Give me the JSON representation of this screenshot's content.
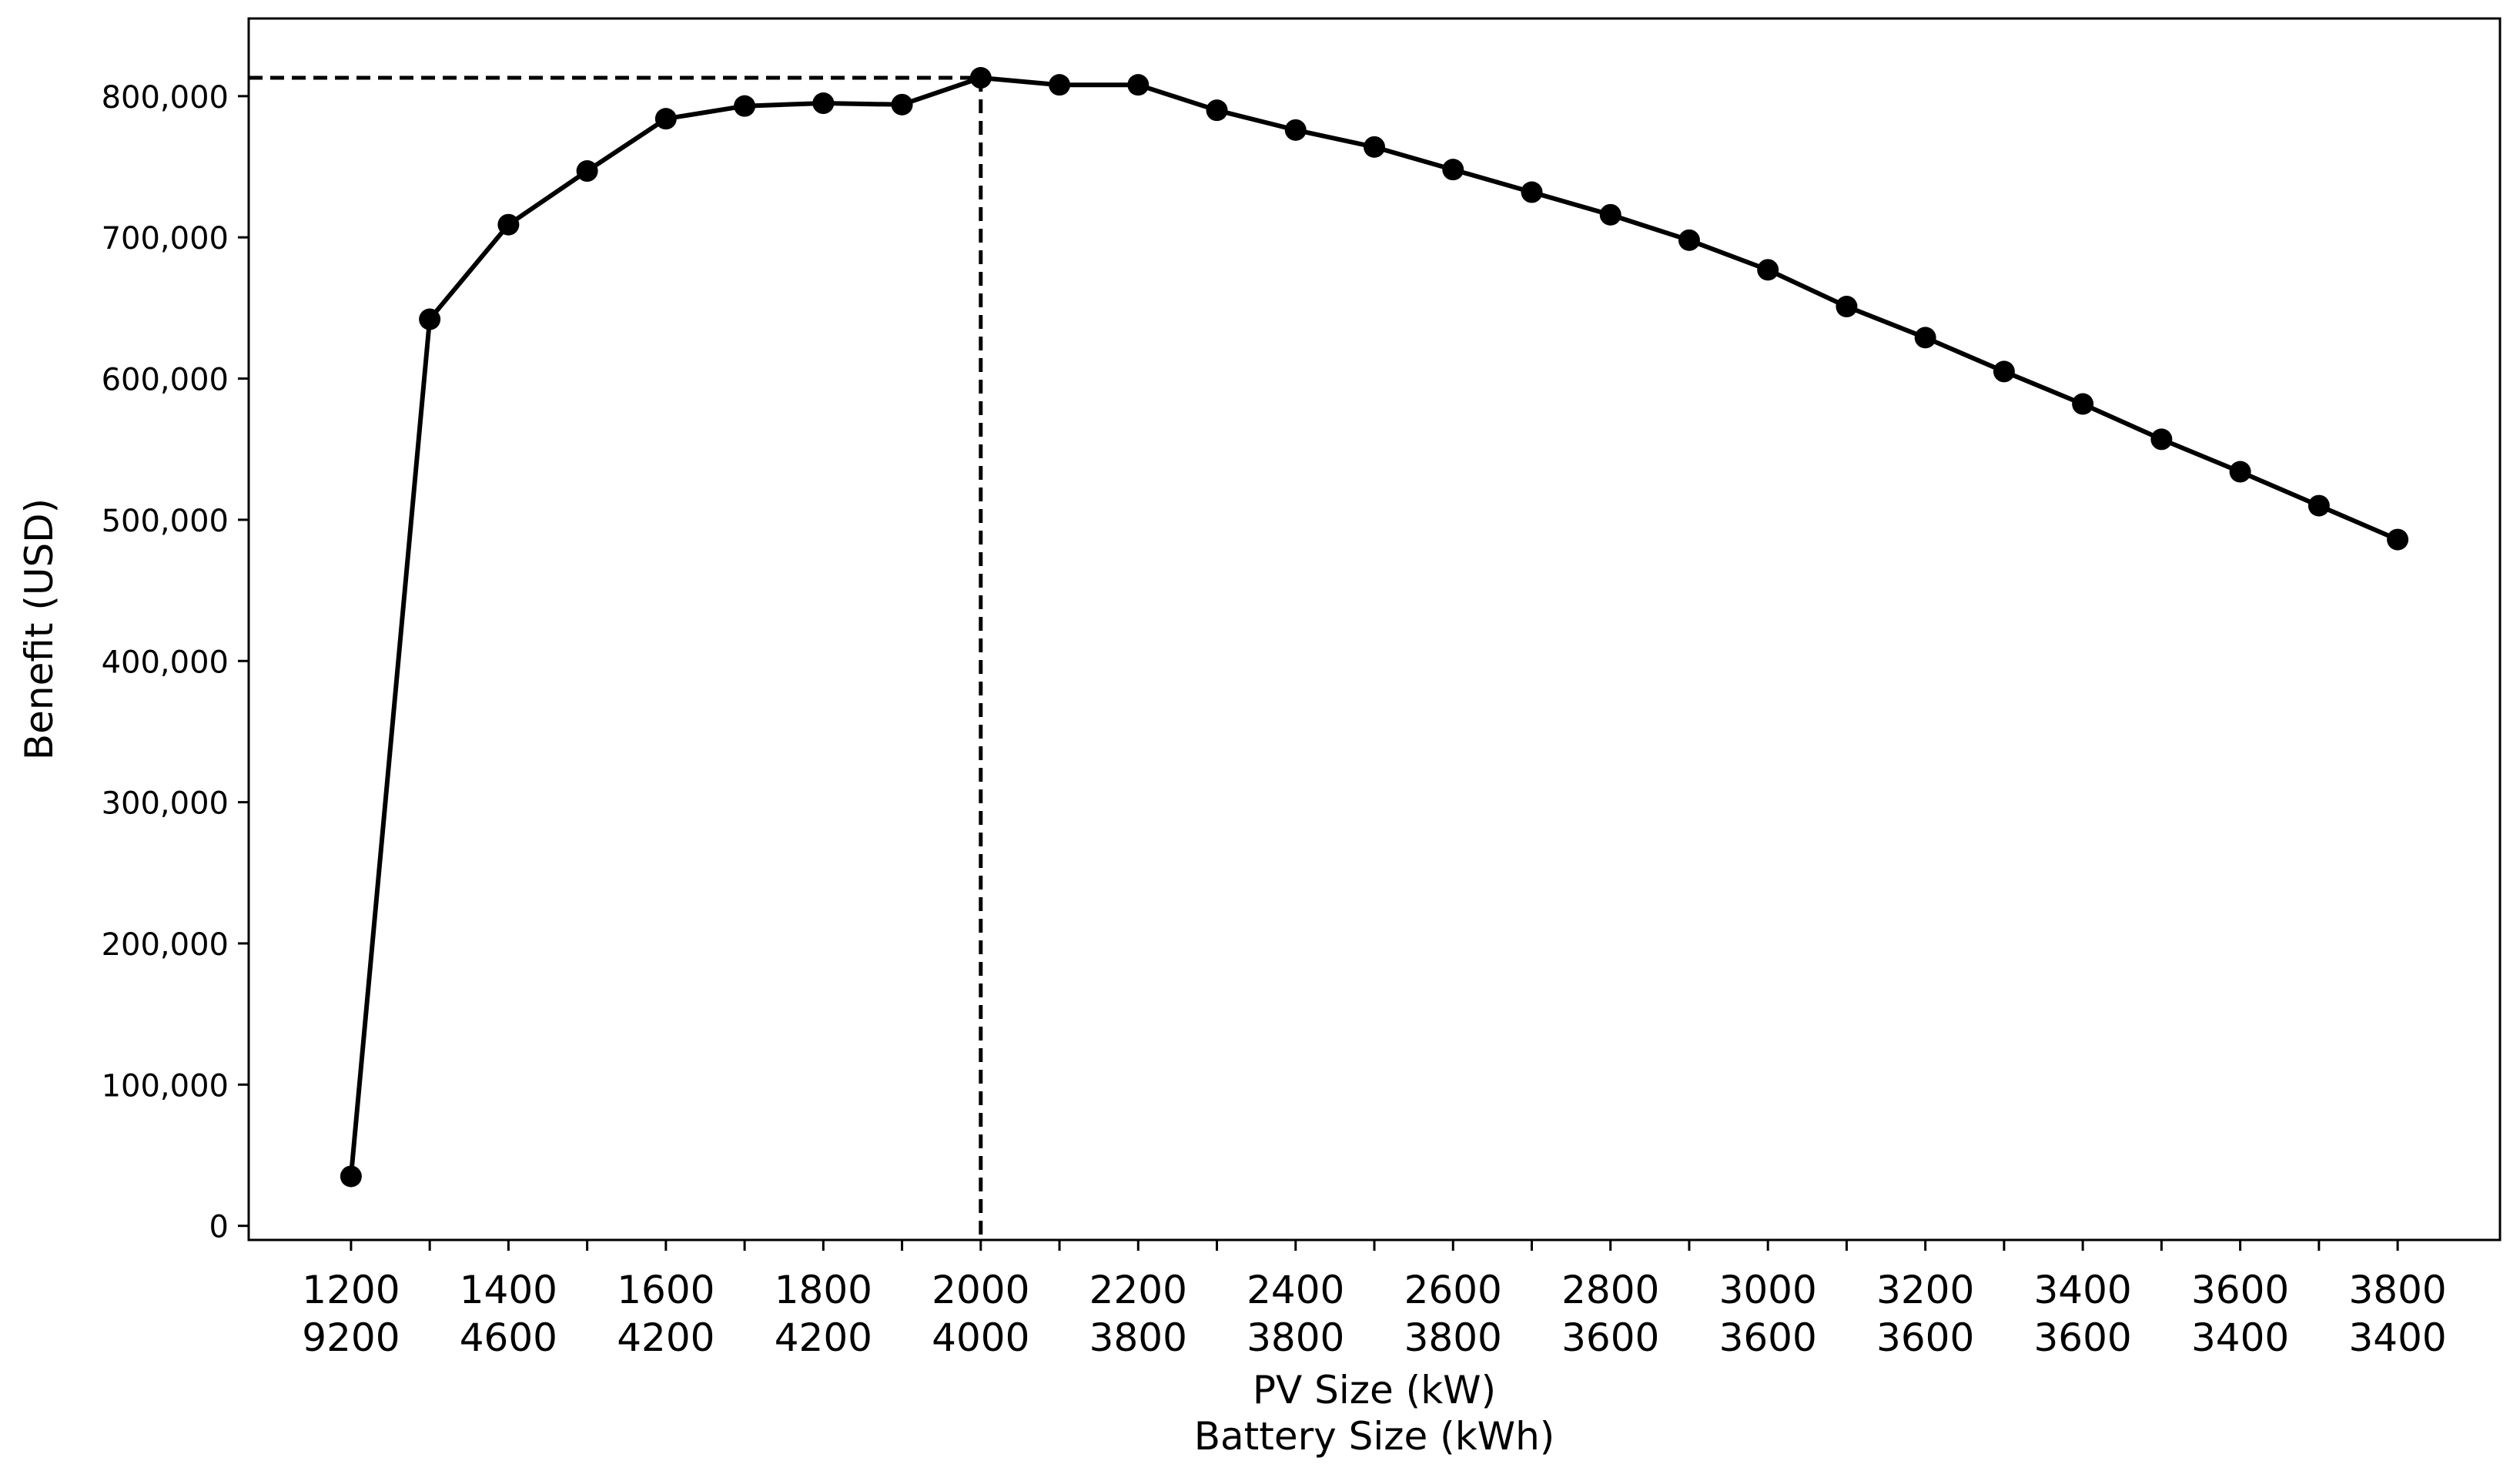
{
  "chart_data": {
    "type": "line",
    "xlabel_lines": [
      "PV Size (kW)",
      "Battery Size (kWh)"
    ],
    "ylabel": "Benefit (USD)",
    "ylim": [
      -10000,
      855000
    ],
    "yticks": [
      0,
      100000,
      200000,
      300000,
      400000,
      500000,
      600000,
      700000,
      800000
    ],
    "ytick_labels": [
      "0",
      "100,000",
      "200,000",
      "300,000",
      "400,000",
      "500,000",
      "600,000",
      "700,000",
      "800,000"
    ],
    "xlim": [
      1070,
      3930
    ],
    "xtick_labels": [
      {
        "pv": "1200",
        "battery": "9200"
      },
      {
        "pv": "1400",
        "battery": "4600"
      },
      {
        "pv": "1600",
        "battery": "4200"
      },
      {
        "pv": "1800",
        "battery": "4200"
      },
      {
        "pv": "2000",
        "battery": "4000"
      },
      {
        "pv": "2200",
        "battery": "3800"
      },
      {
        "pv": "2400",
        "battery": "3800"
      },
      {
        "pv": "2600",
        "battery": "3800"
      },
      {
        "pv": "2800",
        "battery": "3600"
      },
      {
        "pv": "3000",
        "battery": "3600"
      },
      {
        "pv": "3200",
        "battery": "3600"
      },
      {
        "pv": "3400",
        "battery": "3600"
      },
      {
        "pv": "3600",
        "battery": "3400"
      },
      {
        "pv": "3800",
        "battery": "3400"
      }
    ],
    "series": [
      {
        "x": [
          1200,
          1300,
          1400,
          1500,
          1600,
          1700,
          1800,
          1900,
          2000,
          2100,
          2200,
          2300,
          2400,
          2500,
          2600,
          2700,
          2800,
          2900,
          3000,
          3100,
          3200,
          3300,
          3400,
          3500,
          3600,
          3700,
          3800
        ],
        "y": [
          35000,
          642000,
          709000,
          747000,
          784000,
          793000,
          795000,
          794000,
          813000,
          808000,
          808000,
          790000,
          776000,
          764000,
          748000,
          732000,
          716000,
          698000,
          677000,
          651000,
          629000,
          605000,
          582000,
          557000,
          534000,
          510000,
          486000
        ]
      }
    ],
    "optimum": {
      "x": 2000,
      "y": 813000
    },
    "grid": false,
    "color": "#000000"
  }
}
